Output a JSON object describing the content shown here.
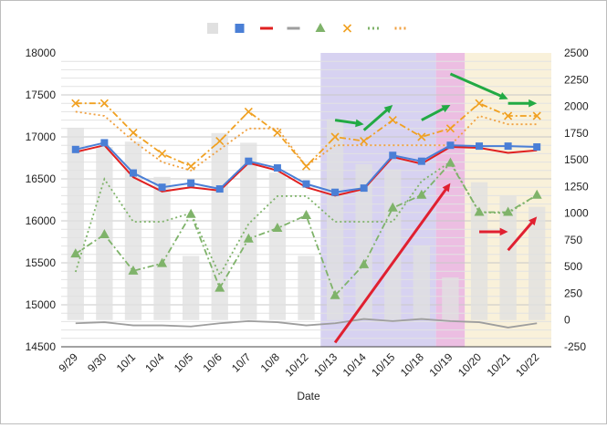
{
  "chart_data": {
    "type": "combo",
    "xlabel": "Date",
    "categories": [
      "9/29",
      "9/30",
      "10/1",
      "10/4",
      "10/5",
      "10/6",
      "10/7",
      "10/8",
      "10/12",
      "10/13",
      "10/14",
      "10/15",
      "10/18",
      "10/19",
      "10/20",
      "10/21",
      "10/22"
    ],
    "left_axis": {
      "ticks": [
        14500,
        15000,
        15500,
        16000,
        16500,
        17000,
        17500,
        18000
      ],
      "range": [
        14500,
        18000
      ]
    },
    "right_axis": {
      "ticks": [
        -250,
        0,
        250,
        500,
        750,
        1000,
        1250,
        1500,
        1750,
        2000,
        2250,
        2500
      ],
      "range": [
        -250,
        2500
      ]
    },
    "grid": true,
    "legend_position": "top",
    "series": [
      {
        "kind": "bar-right",
        "color": "#e0e0e0",
        "values": [
          1800,
          1620,
          1670,
          1340,
          600,
          1750,
          1660,
          1380,
          600,
          1880,
          1460,
          1410,
          700,
          400,
          1290,
          1160,
          1060
        ]
      },
      {
        "kind": "line-square",
        "color": "#4a7fd6",
        "values": [
          16850,
          16930,
          16570,
          16400,
          16450,
          16380,
          16710,
          16630,
          16440,
          16340,
          16390,
          16780,
          16710,
          16900,
          16890,
          16890,
          16880
        ]
      },
      {
        "kind": "line-red",
        "color": "#e02020",
        "values": [
          16820,
          16900,
          16520,
          16350,
          16400,
          16360,
          16690,
          16600,
          16400,
          16300,
          16380,
          16760,
          16680,
          16880,
          16870,
          16810,
          16840
        ]
      },
      {
        "kind": "line-gray-right",
        "color": "#9e9e9e",
        "values": [
          -30,
          -20,
          -50,
          -50,
          -60,
          -30,
          -10,
          -20,
          -50,
          -30,
          10,
          -10,
          10,
          -10,
          -20,
          -70,
          -30
        ]
      },
      {
        "kind": "dashdot-triangle-right",
        "color": "#7fb36a",
        "values": [
          620,
          800,
          460,
          530,
          990,
          300,
          760,
          860,
          980,
          230,
          520,
          1050,
          1170,
          1470,
          1010,
          1010,
          1170
        ]
      },
      {
        "kind": "dashdot-x",
        "color": "#f0a020",
        "values": [
          17400,
          17400,
          17050,
          16800,
          16650,
          16950,
          17300,
          17050,
          16650,
          17000,
          16950,
          17200,
          17000,
          17100,
          17400,
          17250,
          17250
        ]
      },
      {
        "kind": "dotted-right",
        "color": "#7fb36a",
        "values": [
          450,
          1320,
          920,
          920,
          1000,
          420,
          900,
          1160,
          1160,
          920,
          920,
          920,
          1300,
          1480,
          1010,
          1000,
          1170
        ]
      },
      {
        "kind": "dotted",
        "color": "#f0a040",
        "values": [
          17300,
          17250,
          16950,
          16700,
          16600,
          16850,
          17100,
          17100,
          16650,
          16900,
          16900,
          16900,
          16900,
          16900,
          17250,
          17150,
          17150
        ]
      }
    ],
    "annotations": {
      "shaded_regions": [
        {
          "from": "10/13",
          "to": "10/18",
          "color": "#c9c3ec"
        },
        {
          "from": "10/19",
          "to": "10/19",
          "color": "#e6a8d8"
        },
        {
          "from": "10/20",
          "to": "10/22",
          "color": "#f7eccd"
        }
      ],
      "arrows": [
        {
          "color": "#22aa44",
          "from": [
            "10/13",
            17200
          ],
          "to": [
            "10/14",
            17150
          ]
        },
        {
          "color": "#22aa44",
          "from": [
            "10/14",
            17080
          ],
          "to": [
            "10/15",
            17380
          ]
        },
        {
          "color": "#22aa44",
          "from": [
            "10/18",
            17200
          ],
          "to": [
            "10/19",
            17380
          ]
        },
        {
          "color": "#22aa44",
          "from": [
            "10/19",
            17750
          ],
          "to": [
            "10/21",
            17450
          ]
        },
        {
          "color": "#22aa44",
          "from": [
            "10/21",
            17400
          ],
          "to": [
            "10/22",
            17400
          ]
        },
        {
          "color": "#e02030",
          "from": [
            "10/13",
            14550
          ],
          "to": [
            "10/19",
            16450
          ]
        },
        {
          "color": "#e02030",
          "from": [
            "10/20",
            15870
          ],
          "to": [
            "10/21",
            15870
          ]
        },
        {
          "color": "#e02030",
          "from": [
            "10/21",
            15650
          ],
          "to": [
            "10/22",
            16050
          ]
        }
      ]
    }
  }
}
